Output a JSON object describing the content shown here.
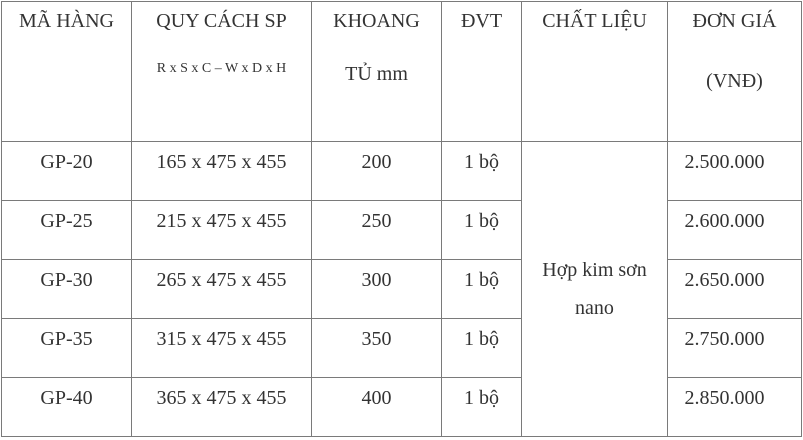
{
  "header": {
    "ma_hang": "MÃ HÀNG",
    "quy_cach": "QUY CÁCH SP",
    "quy_cach_sub": "R x S x C – W x D x H",
    "khoang_tu_1": "KHOANG",
    "khoang_tu_2": "TỦ mm",
    "dvt": "ĐVT",
    "chat_lieu": "CHẤT LIỆU",
    "don_gia_1": "ĐƠN GIÁ",
    "don_gia_2": "(VNĐ)"
  },
  "material": {
    "line1": "Hợp kim sơn",
    "line2": "nano"
  },
  "rows": [
    {
      "code": "GP-20",
      "size": "165 x 475 x 455",
      "cabinet": "200",
      "unit": "1 bộ",
      "price": "2.500.000"
    },
    {
      "code": "GP-25",
      "size": "215 x 475 x 455",
      "cabinet": "250",
      "unit": "1 bộ",
      "price": "2.600.000"
    },
    {
      "code": "GP-30",
      "size": "265 x 475 x 455",
      "cabinet": "300",
      "unit": "1 bộ",
      "price": "2.650.000"
    },
    {
      "code": "GP-35",
      "size": "315 x 475 x 455",
      "cabinet": "350",
      "unit": "1 bộ",
      "price": "2.750.000"
    },
    {
      "code": "GP-40",
      "size": "365 x 475 x 455",
      "cabinet": "400",
      "unit": "1 bộ",
      "price": "2.850.000"
    }
  ]
}
